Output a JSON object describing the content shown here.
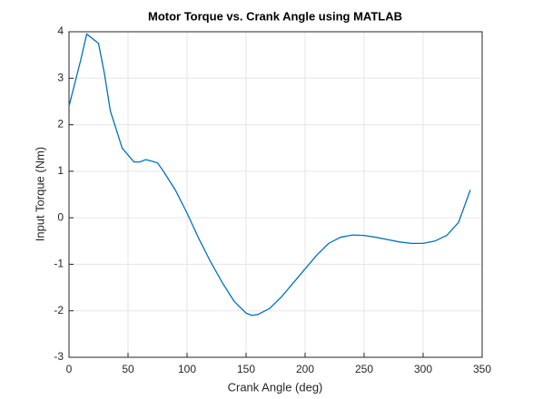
{
  "chart_data": {
    "type": "line",
    "title": "Motor Torque vs. Crank Angle using MATLAB",
    "x_label": "Crank Angle (deg)",
    "y_label": "Input Torque (Nm)",
    "x": [
      0,
      5,
      10,
      15,
      20,
      25,
      30,
      35,
      40,
      45,
      50,
      55,
      60,
      65,
      70,
      75,
      80,
      90,
      100,
      110,
      120,
      130,
      140,
      150,
      155,
      160,
      170,
      180,
      190,
      200,
      210,
      220,
      230,
      240,
      250,
      260,
      270,
      280,
      290,
      300,
      310,
      320,
      330,
      340
    ],
    "values": [
      2.4,
      2.9,
      3.4,
      3.95,
      3.85,
      3.75,
      3.1,
      2.3,
      1.9,
      1.5,
      1.35,
      1.2,
      1.2,
      1.25,
      1.22,
      1.18,
      1.0,
      0.6,
      0.1,
      -0.45,
      -0.95,
      -1.4,
      -1.8,
      -2.05,
      -2.1,
      -2.08,
      -1.95,
      -1.7,
      -1.4,
      -1.1,
      -0.8,
      -0.55,
      -0.42,
      -0.37,
      -0.38,
      -0.42,
      -0.47,
      -0.52,
      -0.55,
      -0.55,
      -0.5,
      -0.38,
      -0.1,
      0.6
    ],
    "color": "#0072bd",
    "xlim": [
      0,
      350
    ],
    "xticks": [
      0,
      50,
      100,
      150,
      200,
      250,
      300,
      350
    ],
    "ylim": [
      -3,
      4
    ],
    "yticks": [
      -3,
      -2,
      -1,
      0,
      1,
      2,
      3,
      4
    ],
    "grid": true
  }
}
